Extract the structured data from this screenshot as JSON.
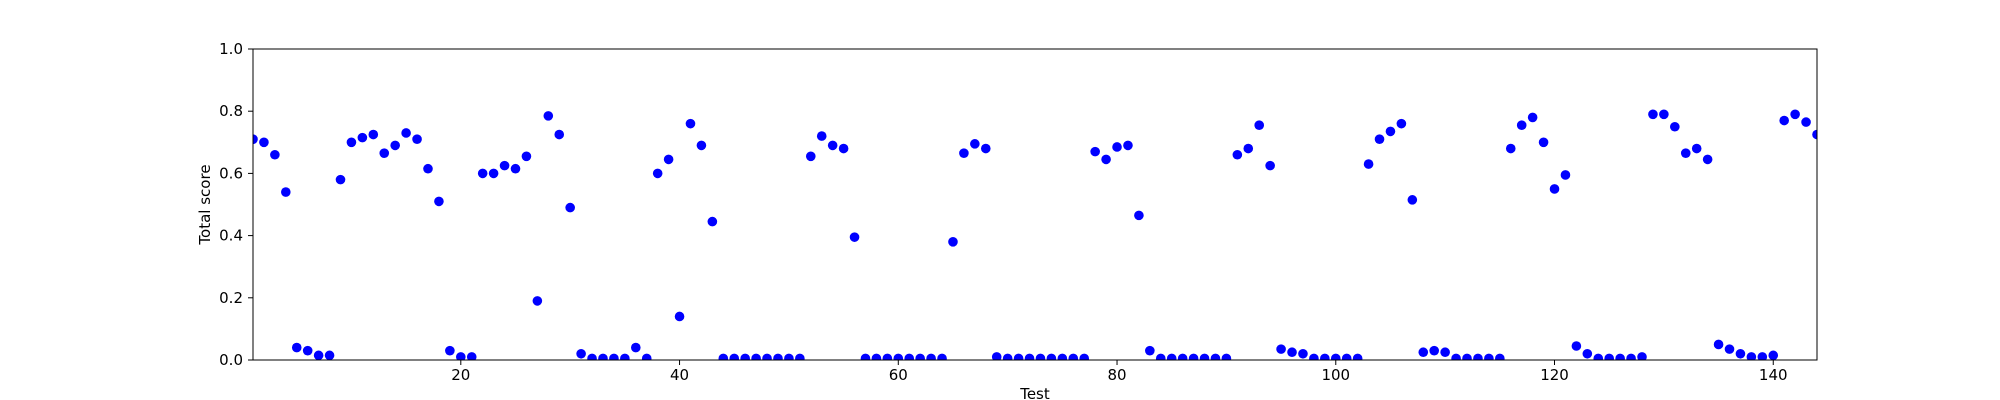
{
  "chart_data": {
    "type": "scatter",
    "title": "",
    "xlabel": "Test",
    "ylabel": "Total score",
    "xlim": [
      1,
      144
    ],
    "ylim": [
      0,
      1
    ],
    "grid": false,
    "marker_color": "#0000ff",
    "x_ticks": [
      20,
      40,
      60,
      80,
      100,
      120,
      140
    ],
    "y_ticks": [
      0.0,
      0.2,
      0.4,
      0.6,
      0.8,
      1.0
    ],
    "x_tick_labels": [
      "20",
      "40",
      "60",
      "80",
      "100",
      "120",
      "140"
    ],
    "y_tick_labels": [
      "0.0",
      "0.2",
      "0.4",
      "0.6",
      "0.8",
      "1.0"
    ],
    "x": [
      1,
      2,
      3,
      4,
      5,
      6,
      7,
      8,
      9,
      10,
      11,
      12,
      13,
      14,
      15,
      16,
      17,
      18,
      19,
      20,
      21,
      22,
      23,
      24,
      25,
      26,
      27,
      28,
      29,
      30,
      31,
      32,
      33,
      34,
      35,
      36,
      37,
      38,
      39,
      40,
      41,
      42,
      43,
      44,
      45,
      46,
      47,
      48,
      49,
      50,
      51,
      52,
      53,
      54,
      55,
      56,
      57,
      58,
      59,
      60,
      61,
      62,
      63,
      64,
      65,
      66,
      67,
      68,
      69,
      70,
      71,
      72,
      73,
      74,
      75,
      76,
      77,
      78,
      79,
      80,
      81,
      82,
      83,
      84,
      85,
      86,
      87,
      88,
      89,
      90,
      91,
      92,
      93,
      94,
      95,
      96,
      97,
      98,
      99,
      100,
      101,
      102,
      103,
      104,
      105,
      106,
      107,
      108,
      109,
      110,
      111,
      112,
      113,
      114,
      115,
      116,
      117,
      118,
      119,
      120,
      121,
      122,
      123,
      124,
      125,
      126,
      127,
      128,
      129,
      130,
      131,
      132,
      133,
      134,
      135,
      136,
      137,
      138,
      139,
      140,
      141,
      142,
      143,
      144
    ],
    "y": [
      0.71,
      0.7,
      0.66,
      0.54,
      0.04,
      0.03,
      0.015,
      0.015,
      0.58,
      0.7,
      0.715,
      0.725,
      0.665,
      0.69,
      0.73,
      0.71,
      0.615,
      0.51,
      0.03,
      0.01,
      0.01,
      0.6,
      0.6,
      0.625,
      0.615,
      0.655,
      0.19,
      0.785,
      0.725,
      0.49,
      0.02,
      0.005,
      0.005,
      0.005,
      0.005,
      0.04,
      0.005,
      0.6,
      0.645,
      0.14,
      0.76,
      0.69,
      0.445,
      0.005,
      0.005,
      0.005,
      0.005,
      0.005,
      0.005,
      0.005,
      0.005,
      0.655,
      0.72,
      0.69,
      0.68,
      0.395,
      0.005,
      0.005,
      0.005,
      0.005,
      0.005,
      0.005,
      0.005,
      0.005,
      0.38,
      0.665,
      0.695,
      0.68,
      0.01,
      0.005,
      0.005,
      0.005,
      0.005,
      0.005,
      0.005,
      0.005,
      0.005,
      0.67,
      0.645,
      0.685,
      0.69,
      0.465,
      0.03,
      0.005,
      0.005,
      0.005,
      0.005,
      0.005,
      0.005,
      0.005,
      0.66,
      0.68,
      0.755,
      0.625,
      0.035,
      0.025,
      0.02,
      0.005,
      0.005,
      0.005,
      0.005,
      0.005,
      0.63,
      0.71,
      0.735,
      0.76,
      0.515,
      0.025,
      0.03,
      0.025,
      0.005,
      0.005,
      0.005,
      0.005,
      0.005,
      0.68,
      0.755,
      0.78,
      0.7,
      0.55,
      0.595,
      0.045,
      0.02,
      0.005,
      0.005,
      0.005,
      0.005,
      0.01,
      0.79,
      0.79,
      0.75,
      0.665,
      0.68,
      0.645,
      0.05,
      0.035,
      0.02,
      0.01,
      0.01,
      0.015,
      0.77,
      0.79,
      0.765,
      0.725
    ]
  }
}
